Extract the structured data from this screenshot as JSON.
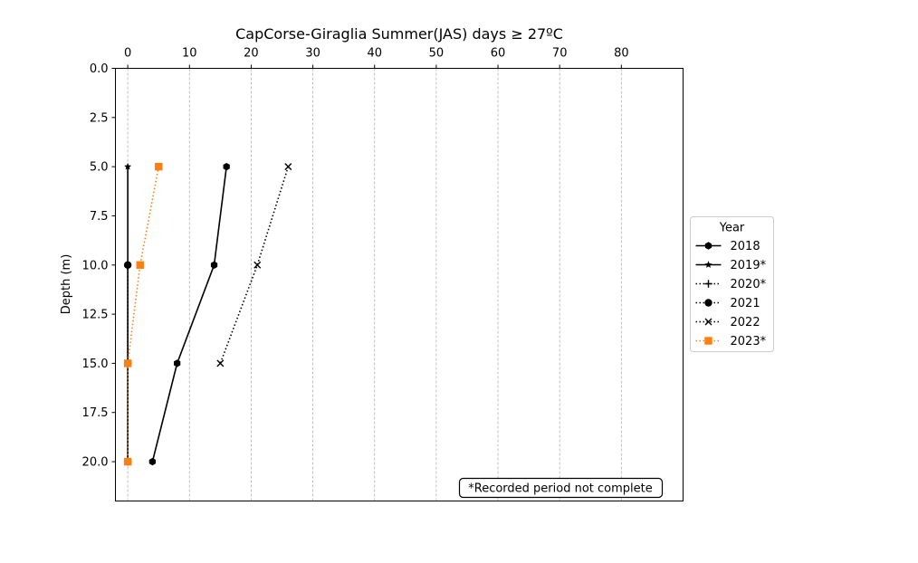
{
  "chart_data": {
    "type": "line",
    "title": "CapCorse-Giraglia Summer(JAS) days ≥ 27ºC",
    "xlabel": "",
    "ylabel": "Depth (m)",
    "xlim": [
      -2,
      90
    ],
    "ylim": [
      22,
      0
    ],
    "x_ticks": [
      0,
      10,
      20,
      30,
      40,
      50,
      60,
      70,
      80
    ],
    "y_ticks": [
      0.0,
      2.5,
      5.0,
      7.5,
      10.0,
      12.5,
      15.0,
      17.5,
      20.0
    ],
    "x_axis_position": "top",
    "y_inverted": true,
    "grid": "vertical dashed",
    "legend_title": "Year",
    "legend_position": "outside right",
    "series": [
      {
        "name": "2018",
        "color": "#000000",
        "linestyle": "solid",
        "marker": "hexagon",
        "points": [
          {
            "x": 16,
            "y": 5
          },
          {
            "x": 14,
            "y": 10
          },
          {
            "x": 8,
            "y": 15
          },
          {
            "x": 4,
            "y": 20
          }
        ]
      },
      {
        "name": "2019*",
        "color": "#000000",
        "linestyle": "solid",
        "marker": "star",
        "points": [
          {
            "x": 0,
            "y": 5
          },
          {
            "x": 0,
            "y": 10
          },
          {
            "x": 0,
            "y": 15
          },
          {
            "x": 0,
            "y": 20
          }
        ]
      },
      {
        "name": "2020*",
        "color": "#000000",
        "linestyle": "dotted",
        "marker": "plus",
        "points": [
          {
            "x": 0,
            "y": 15
          },
          {
            "x": 0,
            "y": 20
          }
        ]
      },
      {
        "name": "2021",
        "color": "#000000",
        "linestyle": "dotted",
        "marker": "circle",
        "points": [
          {
            "x": 0,
            "y": 10
          },
          {
            "x": 0,
            "y": 15
          },
          {
            "x": 0,
            "y": 20
          }
        ]
      },
      {
        "name": "2022",
        "color": "#000000",
        "linestyle": "dotted",
        "marker": "x",
        "points": [
          {
            "x": 26,
            "y": 5
          },
          {
            "x": 21,
            "y": 10
          },
          {
            "x": 15,
            "y": 15
          }
        ]
      },
      {
        "name": "2023*",
        "color": "#ff7f0e",
        "linestyle": "dotted",
        "marker": "square",
        "points": [
          {
            "x": 5,
            "y": 5
          },
          {
            "x": 2,
            "y": 10
          },
          {
            "x": 0,
            "y": 15
          },
          {
            "x": 0,
            "y": 20
          }
        ]
      }
    ],
    "annotation": "*Recorded period not complete"
  }
}
